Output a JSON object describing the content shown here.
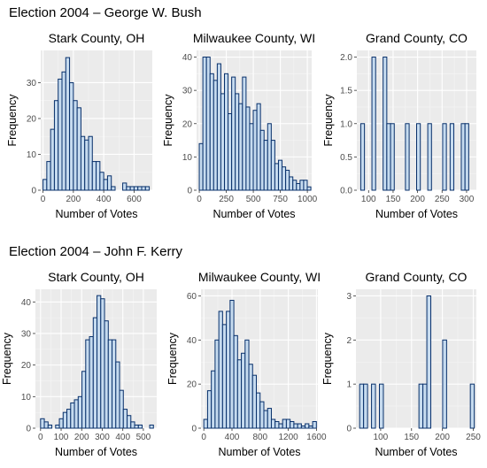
{
  "sections": [
    {
      "title": "Election 2004 – George W. Bush"
    },
    {
      "title": "Election 2004 – John F. Kerry"
    }
  ],
  "colors": {
    "panel": "#ebebeb",
    "grid_major": "#ffffff",
    "bar_fill": "#c6dbef",
    "bar_stroke": "#08306b"
  },
  "chart_data": [
    {
      "type": "bar",
      "title": "Stark County, OH",
      "xlabel": "Number of Votes",
      "ylabel": "Frequency",
      "xlim": [
        -15,
        720
      ],
      "ylim": [
        0,
        39
      ],
      "xticks": [
        0,
        200,
        400,
        600
      ],
      "yticks": [
        0,
        10,
        20,
        30
      ],
      "bin_start": 0,
      "bin_width": 25,
      "values": [
        3,
        8,
        17,
        25,
        31,
        33,
        37,
        30,
        25,
        23,
        15,
        14,
        15,
        8,
        8,
        5,
        3,
        4,
        1,
        0,
        0,
        2,
        1,
        1,
        1,
        1,
        1,
        1
      ]
    },
    {
      "type": "bar",
      "title": "Milwaukee County, WI",
      "xlabel": "Number of Votes",
      "ylabel": "Frequency",
      "xlim": [
        -25,
        1040
      ],
      "ylim": [
        0,
        42
      ],
      "xticks": [
        0,
        250,
        500,
        750,
        1000
      ],
      "yticks": [
        0,
        10,
        20,
        30,
        40
      ],
      "bin_start": 0,
      "bin_width": 33.3,
      "values": [
        14,
        40,
        40,
        35,
        33,
        38,
        29,
        35,
        23,
        34,
        29,
        26,
        34,
        25,
        20,
        24,
        26,
        18,
        15,
        20,
        15,
        8,
        9,
        7,
        6,
        4,
        3,
        2,
        3,
        3,
        1
      ]
    },
    {
      "type": "bar",
      "title": "Grand County, CO",
      "xlabel": "Number of Votes",
      "ylabel": "Frequency",
      "xlim": [
        76,
        320
      ],
      "ylim": [
        0,
        2.1
      ],
      "xticks": [
        100,
        150,
        200,
        250,
        300
      ],
      "yticks": [
        0,
        0.5,
        1,
        1.5,
        2
      ],
      "ytick_labels": [
        "0.0",
        "0.5",
        "1.0",
        "1.5",
        "2.0"
      ],
      "bin_start": 84,
      "bin_width": 7.6,
      "values": [
        1,
        0,
        0,
        2,
        0,
        0,
        2,
        1,
        1,
        0,
        0,
        0,
        1,
        0,
        0,
        1,
        0,
        0,
        1,
        0,
        0,
        0,
        1,
        0,
        1,
        0,
        0,
        1,
        1
      ]
    },
    {
      "type": "bar",
      "title": "Stark County, OH",
      "xlabel": "Number of Votes",
      "ylabel": "Frequency",
      "xlim": [
        -25,
        565
      ],
      "ylim": [
        0,
        44
      ],
      "xticks": [
        0,
        100,
        200,
        300,
        400,
        500
      ],
      "yticks": [
        0,
        10,
        20,
        30,
        40
      ],
      "bin_start": 0,
      "bin_width": 18.3,
      "values": [
        3,
        2,
        1,
        0,
        1,
        3,
        5,
        6,
        8,
        9,
        10,
        18,
        28,
        29,
        35,
        42,
        41,
        34,
        28,
        28,
        21,
        12,
        6,
        4,
        2,
        1,
        1,
        0,
        0,
        1
      ]
    },
    {
      "type": "bar",
      "title": "Milwaukee County, WI",
      "xlabel": "Number of Votes",
      "ylabel": "Frequency",
      "xlim": [
        -40,
        1620
      ],
      "ylim": [
        0,
        63
      ],
      "xticks": [
        0,
        400,
        800,
        1200,
        1600
      ],
      "yticks": [
        0,
        20,
        40,
        60
      ],
      "bin_start": 0,
      "bin_width": 53.3,
      "values": [
        4,
        17,
        26,
        40,
        53,
        47,
        53,
        58,
        42,
        31,
        34,
        40,
        29,
        24,
        16,
        12,
        8,
        9,
        4,
        3,
        2,
        4,
        4,
        3,
        2,
        2,
        1,
        2,
        1,
        3
      ]
    },
    {
      "type": "bar",
      "title": "Grand County, CO",
      "xlabel": "Number of Votes",
      "ylabel": "Frequency",
      "xlim": [
        60,
        255
      ],
      "ylim": [
        0,
        3.15
      ],
      "xticks": [
        100,
        150,
        200,
        250
      ],
      "yticks": [
        0,
        1,
        2,
        3
      ],
      "bin_start": 66,
      "bin_width": 6.4,
      "values": [
        1,
        1,
        0,
        1,
        0,
        1,
        0,
        0,
        0,
        0,
        0,
        0,
        0,
        0,
        0,
        1,
        1,
        3,
        0,
        0,
        0,
        2,
        0,
        0,
        0,
        0,
        0,
        0,
        1
      ]
    }
  ]
}
